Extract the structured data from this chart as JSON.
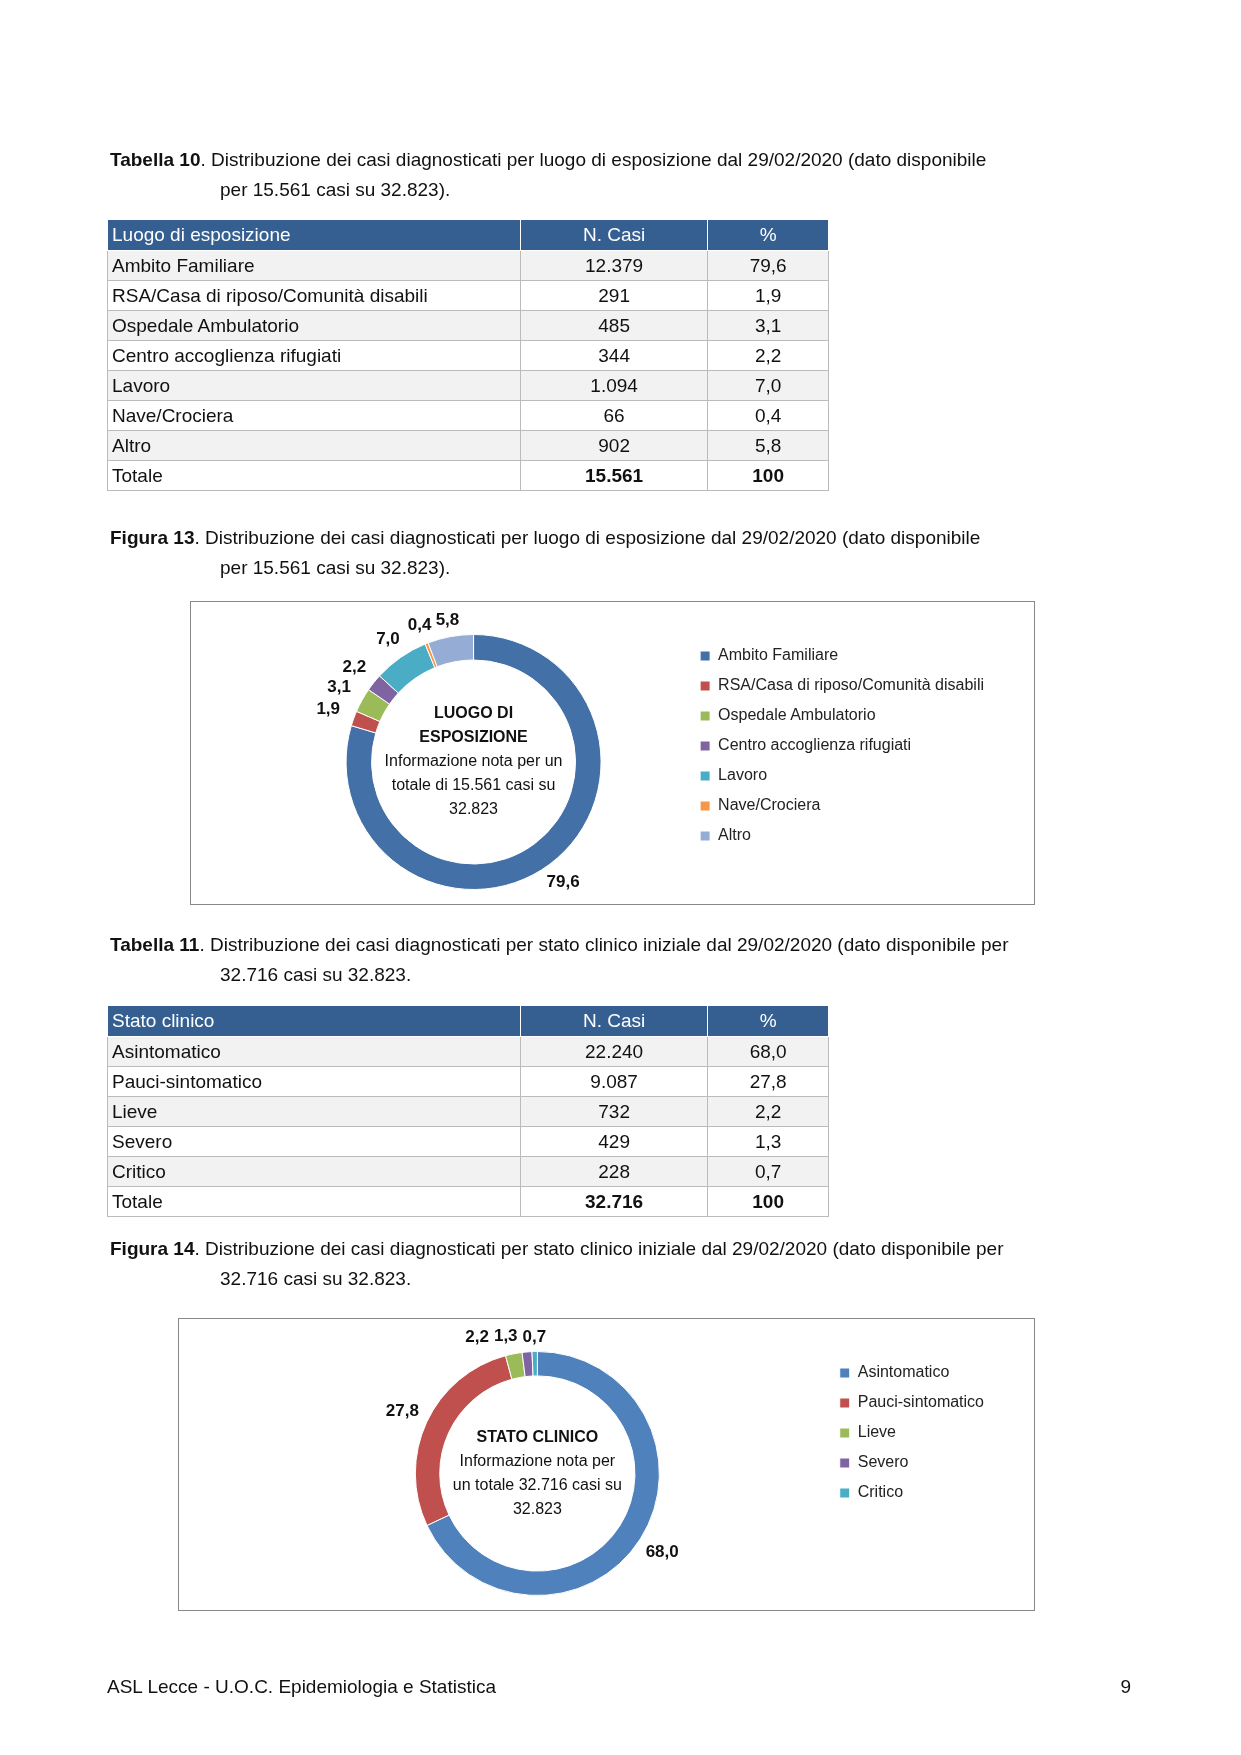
{
  "chart_data": [
    {
      "type": "other",
      "title": "Tabella 10. Distribuzione dei casi diagnosticati per luogo di esposizione dal 29/02/2020 (dato disponibile per 15.561 casi su 32.823).",
      "ylabel": "Luogo di esposizione",
      "categories": [
        "Ambito Familiare",
        "RSA/Casa di riposo/Comunità disabili",
        "Ospedale Ambulatorio",
        "Centro accoglienza rifugiati",
        "Lavoro",
        "Nave/Crociera",
        "Altro",
        "Totale"
      ],
      "series": [
        {
          "name": "N. Casi",
          "values": [
            12379,
            291,
            485,
            344,
            1094,
            66,
            902,
            15561
          ],
          "value_labels": [
            "12.379",
            "291",
            "485",
            "344",
            "1.094",
            "66",
            "902",
            "15.561"
          ]
        },
        {
          "name": "%",
          "values": [
            79.6,
            1.9,
            3.1,
            2.2,
            7.0,
            0.4,
            5.8,
            100
          ],
          "value_labels": [
            "79,6",
            "1,9",
            "3,1",
            "2,2",
            "7,0",
            "0,4",
            "5,8",
            "100"
          ]
        }
      ]
    },
    {
      "type": "donut",
      "title": "Figura 13. Distribuzione dei casi diagnosticati per luogo di esposizione dal 29/02/2020 (dato disponibile per 15.561 casi su 32.823).",
      "categories": [
        "Ambito Familiare",
        "RSA/Casa di riposo/Comunità disabili",
        "Ospedale Ambulatorio",
        "Centro accoglienza rifugiati",
        "Lavoro",
        "Nave/Crociera",
        "Altro"
      ],
      "values": [
        79.6,
        1.9,
        3.1,
        2.2,
        7.0,
        0.4,
        5.8
      ],
      "value_labels": [
        "79,6",
        "1,9",
        "3,1",
        "2,2",
        "7,0",
        "0,4",
        "5,8"
      ],
      "colors": [
        "#4470a8",
        "#c0504d",
        "#9bbb59",
        "#8064a2",
        "#4bacc6",
        "#f79646",
        "#95add4"
      ],
      "legend": "right",
      "annotations": [
        "LUOGO DI ESPOSIZIONE",
        "Informazione nota per un totale di 15.561 casi su 32.823"
      ]
    },
    {
      "type": "other",
      "title": "Tabella 11. Distribuzione dei casi diagnosticati per stato clinico iniziale dal 29/02/2020 (dato disponibile per 32.716 casi su 32.823.",
      "ylabel": "Stato clinico",
      "categories": [
        "Asintomatico",
        "Pauci-sintomatico",
        "Lieve",
        "Severo",
        "Critico",
        "Totale"
      ],
      "series": [
        {
          "name": "N. Casi",
          "values": [
            22240,
            9087,
            732,
            429,
            228,
            32716
          ],
          "value_labels": [
            "22.240",
            "9.087",
            "732",
            "429",
            "228",
            "32.716"
          ]
        },
        {
          "name": "%",
          "values": [
            68.0,
            27.8,
            2.2,
            1.3,
            0.7,
            100
          ],
          "value_labels": [
            "68,0",
            "27,8",
            "2,2",
            "1,3",
            "0,7",
            "100"
          ]
        }
      ]
    },
    {
      "type": "donut",
      "title": "Figura 14. Distribuzione dei casi diagnosticati per stato clinico iniziale dal 29/02/2020 (dato disponibile per 32.716 casi su 32.823.",
      "categories": [
        "Asintomatico",
        "Pauci-sintomatico",
        "Lieve",
        "Severo",
        "Critico"
      ],
      "values": [
        68.0,
        27.8,
        2.2,
        1.3,
        0.7
      ],
      "value_labels": [
        "68,0",
        "27,8",
        "2,2",
        "1,3",
        "0,7"
      ],
      "colors": [
        "#4f81bd",
        "#c0504d",
        "#9bbb59",
        "#8064a2",
        "#4bacc6"
      ],
      "legend": "right",
      "annotations": [
        "STATO CLINICO",
        "Informazione nota per un totale 32.716 casi su 32.823"
      ]
    },
    {
      "type": "other",
      "annotations": [
        "ASL Lecce - U.O.C. Epidemiologia e Statistica",
        "9"
      ]
    }
  ]
}
